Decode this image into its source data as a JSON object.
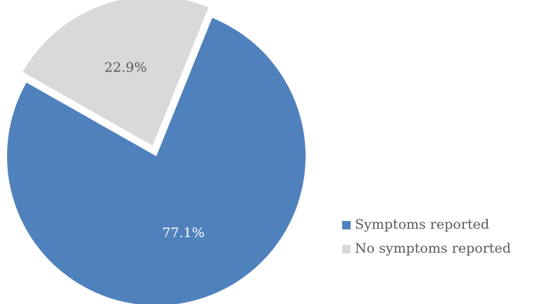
{
  "chart_data": {
    "type": "pie",
    "title": "",
    "categories": [
      "Symptoms reported",
      "No symptoms reported"
    ],
    "values": [
      77.1,
      22.9
    ],
    "data_labels": [
      "77.1%",
      "22.9%"
    ],
    "colors": [
      "#4f81bd",
      "#d9d9d9"
    ],
    "label_colors": [
      "#ffffff",
      "#595959"
    ],
    "exploded_slice": "No symptoms reported",
    "legend_position": "right"
  }
}
